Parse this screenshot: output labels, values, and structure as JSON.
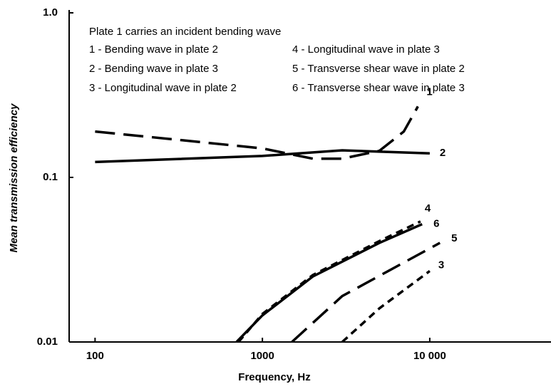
{
  "chart_data": {
    "type": "line",
    "xlabel": "Frequency,  Hz",
    "ylabel": "Mean transmission efficiency",
    "annotations": [
      "Plate 1 carries an incident bending wave",
      "1 - Bending wave in plate 2",
      "2 - Bending wave in plate 3",
      "3 - Longitudinal wave in plate 2",
      "4 - Longitudinal wave in plate 3",
      "5 - Transverse shear wave in plate 2",
      "6 - Transverse shear wave in plate 3"
    ],
    "xscale": "log",
    "yscale": "log",
    "xlim": [
      70,
      50000
    ],
    "ylim": [
      0.01,
      1
    ],
    "xticks": [
      100,
      1000,
      {
        "value": 10000,
        "label": "10 000"
      }
    ],
    "yticks": [
      0.01,
      0.1,
      {
        "value": 1,
        "label": "1.0"
      }
    ],
    "series": [
      {
        "name": "1",
        "color": "#000",
        "line_style": "long-dash",
        "x": [
          100,
          300,
          1000,
          2000,
          3000,
          5000,
          7000,
          8500
        ],
        "values": [
          0.19,
          0.17,
          0.15,
          0.13,
          0.13,
          0.145,
          0.19,
          0.27
        ]
      },
      {
        "name": "2",
        "color": "#000",
        "line_style": "solid",
        "x": [
          100,
          1000,
          3000,
          10000
        ],
        "values": [
          0.124,
          0.135,
          0.146,
          0.14
        ]
      },
      {
        "name": "3",
        "color": "#000",
        "line_style": "short-dash",
        "x": [
          3000,
          5000,
          10000
        ],
        "values": [
          0.01,
          0.016,
          0.027
        ]
      },
      {
        "name": "4",
        "color": "#000",
        "line_style": "short-dash",
        "x": [
          720,
          1000,
          2000,
          5000,
          8800
        ],
        "values": [
          0.01,
          0.0148,
          0.0255,
          0.041,
          0.054
        ]
      },
      {
        "name": "5",
        "color": "#000",
        "line_style": "long-dash",
        "x": [
          1500,
          3000,
          11500
        ],
        "values": [
          0.01,
          0.019,
          0.04
        ]
      },
      {
        "name": "6",
        "color": "#000",
        "line_style": "solid",
        "x": [
          700,
          1000,
          2000,
          5000,
          9000
        ],
        "values": [
          0.01,
          0.0145,
          0.025,
          0.04,
          0.052
        ]
      }
    ]
  }
}
